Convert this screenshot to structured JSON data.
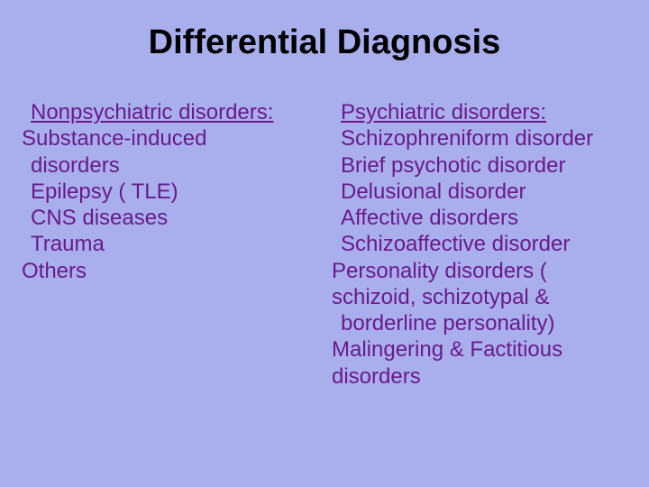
{
  "background_color": "#a9afed",
  "text_color": "#6a1a8a",
  "title_color": "#000000",
  "font_family": "Arial, Helvetica, sans-serif",
  "title": {
    "text": "Differential Diagnosis",
    "fontsize": 38,
    "bold": true
  },
  "body_fontsize": 24,
  "left": {
    "heading": "Nonpsychiatric disorders:",
    "lines": [
      "Substance-induced",
      "disorders",
      "Epilepsy ( TLE)",
      "CNS diseases",
      "Trauma",
      "Others"
    ]
  },
  "right": {
    "heading": "Psychiatric disorders:",
    "lines": [
      "Schizophreniform disorder",
      "Brief psychotic disorder",
      "Delusional disorder",
      "Affective disorders",
      "Schizoaffective disorder",
      "Personality disorders (",
      "schizoid, schizotypal &",
      "borderline personality)",
      "Malingering & Factitious",
      "disorders"
    ]
  }
}
